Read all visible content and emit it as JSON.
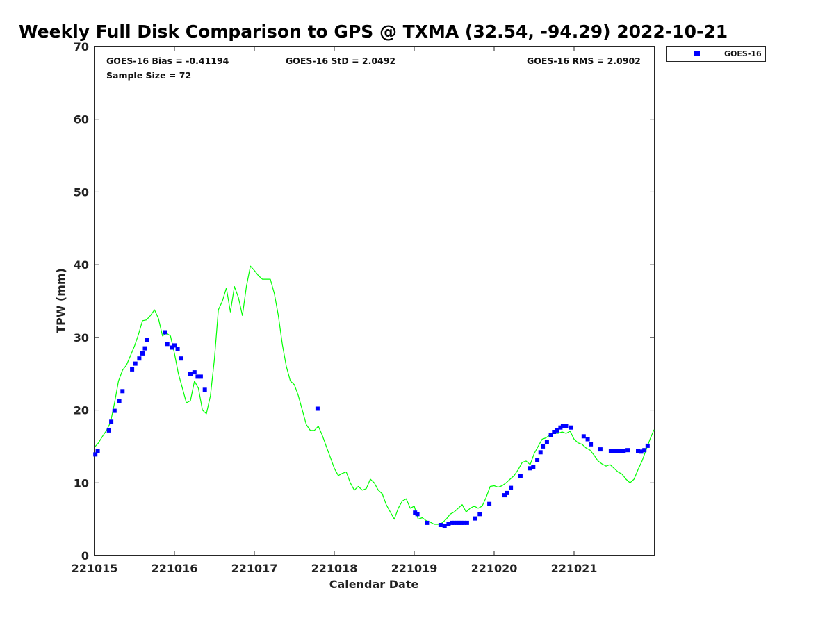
{
  "chart_data": {
    "type": "scatter",
    "title": "Weekly Full Disk Comparison to GPS @ TXMA (32.54, -94.29) 2022-10-21",
    "xlabel": "Calendar Date",
    "ylabel": "TPW (mm)",
    "xlim": [
      221015,
      221022
    ],
    "ylim": [
      0,
      70
    ],
    "x_ticks": [
      "221015",
      "221016",
      "221017",
      "221018",
      "221019",
      "221020",
      "221021"
    ],
    "y_ticks": [
      "0",
      "10",
      "20",
      "30",
      "40",
      "50",
      "60",
      "70"
    ],
    "grid": false,
    "legend_position": "top-right",
    "stats": {
      "bias": "GOES-16 Bias = -0.41194",
      "std": "GOES-16 StD = 2.0492",
      "rms": "GOES-16 RMS = 2.0902",
      "sample": "Sample Size = 72"
    },
    "series": [
      {
        "name": "GOES-16",
        "kind": "scatter",
        "color": "#0000ff",
        "x": [
          221015.01,
          221015.04,
          221015.18,
          221015.21,
          221015.25,
          221015.31,
          221015.35,
          221015.47,
          221015.51,
          221015.56,
          221015.6,
          221015.63,
          221015.66,
          221015.88,
          221015.91,
          221015.97,
          221016.0,
          221016.04,
          221016.08,
          221016.2,
          221016.25,
          221016.29,
          221016.33,
          221016.38,
          221017.79,
          221019.01,
          221019.04,
          221019.16,
          221019.33,
          221019.38,
          221019.43,
          221019.47,
          221019.5,
          221019.53,
          221019.56,
          221019.59,
          221019.62,
          221019.66,
          221019.76,
          221019.82,
          221019.94,
          221020.13,
          221020.16,
          221020.21,
          221020.33,
          221020.45,
          221020.49,
          221020.54,
          221020.58,
          221020.61,
          221020.66,
          221020.71,
          221020.75,
          221020.79,
          221020.83,
          221020.86,
          221020.9,
          221020.96,
          221021.12,
          221021.17,
          221021.21,
          221021.33,
          221021.46,
          221021.5,
          221021.54,
          221021.58,
          221021.62,
          221021.67,
          221021.8,
          221021.84,
          221021.88,
          221021.92
        ],
        "y": [
          13.9,
          14.4,
          17.2,
          18.4,
          19.9,
          21.2,
          22.6,
          25.6,
          26.4,
          27.1,
          27.8,
          28.5,
          29.6,
          30.7,
          29.1,
          28.6,
          28.9,
          28.4,
          27.1,
          25.0,
          25.2,
          24.6,
          24.6,
          22.8,
          20.2,
          5.9,
          5.7,
          4.5,
          4.2,
          4.1,
          4.3,
          4.5,
          4.5,
          4.5,
          4.5,
          4.5,
          4.5,
          4.5,
          5.1,
          5.7,
          7.1,
          8.3,
          8.6,
          9.3,
          10.9,
          12.0,
          12.2,
          13.1,
          14.2,
          15.0,
          15.6,
          16.6,
          17.0,
          17.2,
          17.6,
          17.8,
          17.8,
          17.6,
          16.4,
          16.0,
          15.3,
          14.6,
          14.4,
          14.4,
          14.4,
          14.4,
          14.4,
          14.5,
          14.4,
          14.3,
          14.5,
          15.1
        ]
      },
      {
        "name": "GPS",
        "kind": "line",
        "color": "#00ff00",
        "x": [
          221015.0,
          221015.05,
          221015.1,
          221015.15,
          221015.2,
          221015.25,
          221015.3,
          221015.35,
          221015.4,
          221015.45,
          221015.5,
          221015.55,
          221015.6,
          221015.65,
          221015.7,
          221015.75,
          221015.8,
          221015.85,
          221015.9,
          221015.95,
          221016.0,
          221016.05,
          221016.1,
          221016.15,
          221016.2,
          221016.25,
          221016.3,
          221016.35,
          221016.4,
          221016.45,
          221016.5,
          221016.55,
          221016.6,
          221016.65,
          221016.7,
          221016.75,
          221016.8,
          221016.85,
          221016.9,
          221016.95,
          221017.0,
          221017.05,
          221017.1,
          221017.15,
          221017.2,
          221017.25,
          221017.3,
          221017.35,
          221017.4,
          221017.45,
          221017.5,
          221017.55,
          221017.6,
          221017.65,
          221017.7,
          221017.75,
          221017.8,
          221017.85,
          221017.9,
          221017.95,
          221018.0,
          221018.05,
          221018.1,
          221018.15,
          221018.2,
          221018.25,
          221018.3,
          221018.35,
          221018.4,
          221018.45,
          221018.5,
          221018.55,
          221018.6,
          221018.65,
          221018.7,
          221018.75,
          221018.8,
          221018.85,
          221018.9,
          221018.95,
          221019.0,
          221019.05,
          221019.1,
          221019.15,
          221019.2,
          221019.25,
          221019.3,
          221019.35,
          221019.4,
          221019.45,
          221019.5,
          221019.55,
          221019.6,
          221019.65,
          221019.7,
          221019.75,
          221019.8,
          221019.85,
          221019.9,
          221019.95,
          221020.0,
          221020.05,
          221020.1,
          221020.15,
          221020.2,
          221020.25,
          221020.3,
          221020.35,
          221020.4,
          221020.45,
          221020.5,
          221020.55,
          221020.6,
          221020.65,
          221020.7,
          221020.75,
          221020.8,
          221020.85,
          221020.9,
          221020.95,
          221021.0,
          221021.05,
          221021.1,
          221021.15,
          221021.2,
          221021.25,
          221021.3,
          221021.35,
          221021.4,
          221021.45,
          221021.5,
          221021.55,
          221021.6,
          221021.65,
          221021.7,
          221021.75,
          221021.8,
          221021.85,
          221021.9,
          221021.95,
          221022.0
        ],
        "y": [
          14.9,
          15.5,
          16.4,
          17.2,
          18.3,
          21.0,
          24.0,
          25.5,
          26.2,
          27.5,
          28.8,
          30.4,
          32.3,
          32.4,
          33.0,
          33.8,
          32.6,
          30.2,
          30.6,
          30.2,
          27.8,
          25.0,
          23.0,
          21.0,
          21.3,
          24.0,
          23.0,
          20.0,
          19.5,
          22.0,
          27.0,
          33.8,
          35.0,
          36.8,
          33.5,
          37.0,
          35.5,
          33.0,
          37.0,
          39.8,
          39.2,
          38.5,
          38.0,
          38.0,
          38.0,
          36.0,
          33.0,
          29.0,
          26.0,
          24.0,
          23.5,
          22.0,
          20.0,
          18.0,
          17.2,
          17.2,
          17.8,
          16.5,
          15.0,
          13.5,
          12.0,
          11.0,
          11.3,
          11.5,
          10.0,
          9.0,
          9.5,
          9.0,
          9.2,
          10.5,
          10.0,
          9.0,
          8.5,
          7.0,
          6.0,
          5.0,
          6.5,
          7.5,
          7.8,
          6.5,
          6.8,
          5.0,
          5.2,
          4.8,
          4.6,
          4.3,
          4.3,
          4.5,
          5.0,
          5.7,
          6.0,
          6.5,
          7.0,
          6.0,
          6.5,
          6.8,
          6.5,
          6.8,
          8.0,
          9.5,
          9.6,
          9.4,
          9.6,
          10.0,
          10.5,
          11.0,
          11.8,
          12.8,
          13.0,
          12.5,
          14.0,
          15.0,
          16.0,
          16.2,
          16.6,
          16.9,
          16.8,
          17.0,
          16.8,
          17.1,
          16.0,
          15.5,
          15.3,
          14.8,
          14.5,
          13.8,
          13.0,
          12.6,
          12.3,
          12.5,
          12.0,
          11.5,
          11.2,
          10.5,
          10.0,
          10.5,
          11.8,
          13.0,
          14.5,
          16.0,
          17.3
        ]
      }
    ]
  }
}
